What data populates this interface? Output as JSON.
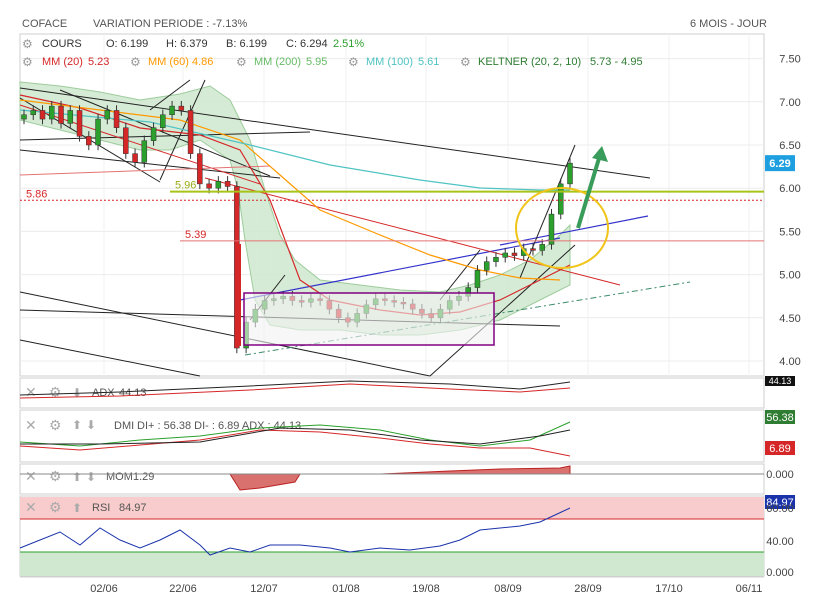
{
  "header": {
    "symbol": "COFACE",
    "variation": "VARIATION PERIODE : -7.13%",
    "period": "6 MOIS - JOUR"
  },
  "legend": {
    "cours_label": "COURS",
    "open": "O: 6.199",
    "high": "H: 6.379",
    "low": "B: 6.199",
    "close": "C: 6.294",
    "change": "2.51%",
    "mm20": "MM (20)",
    "mm20_val": "5.23",
    "mm60": "MM (60)",
    "mm60_val": "4.86",
    "mm200": "MM (200)",
    "mm200_val": "5.95",
    "mm100": "MM (100)",
    "mm100_val": "5.61",
    "keltner": "KELTNER (20, 2, 10)",
    "keltner_val": "5.73 - 4.95"
  },
  "colors": {
    "up": "#2ca02c",
    "down": "#d62728",
    "mm20": "#d62728",
    "mm60": "#ff9900",
    "mm200": "#66bb66",
    "mm100": "#4fc3c3",
    "keltner": "#9ccc9c",
    "support": "#a8c418",
    "level539": "#e57373",
    "price_box": "#1ea0e0",
    "rsi_zone": "#f8cccc",
    "rsi_low": "#cfe8cf",
    "oval": "#f0c419",
    "arrow": "#3a9c5a",
    "frame": "#800080"
  },
  "price_axis": {
    "ticks": [
      "7.50",
      "7.00",
      "6.50",
      "6.00",
      "5.50",
      "5.00",
      "4.50",
      "4.00"
    ],
    "current": "6.29"
  },
  "levels": [
    {
      "label": "5.96",
      "value": 5.96
    },
    {
      "label": "5.86",
      "value": 5.86
    },
    {
      "label": "5.39",
      "value": 5.39
    }
  ],
  "dates": [
    "02/06",
    "22/06",
    "12/07",
    "01/08",
    "19/08",
    "08/09",
    "28/09",
    "17/10",
    "06/11"
  ],
  "indicators": {
    "adx": {
      "label": "ADX",
      "value": "44.13",
      "badge": "44.13"
    },
    "dmi": {
      "label": "DMI",
      "text": "DI+ : 56.38 DI- : 6.89 ADX : 44.13",
      "badge_up": "56.38",
      "badge_down": "6.89"
    },
    "mom": {
      "label": "MOM",
      "value": "1.29",
      "badge": "0.000"
    },
    "rsi": {
      "label": "RSI",
      "value": "84.97",
      "badge": "84.97",
      "ticks": [
        "60.00",
        "40.00",
        "0.000"
      ]
    }
  },
  "chart_data": {
    "type": "candlestick",
    "title": "COFACE",
    "ylim": [
      3.9,
      7.7
    ],
    "x": [
      "02/06",
      "22/06",
      "12/07",
      "01/08",
      "19/08",
      "08/09",
      "28/09",
      "17/10",
      "06/11"
    ],
    "close_series": [
      6.85,
      6.9,
      6.8,
      6.95,
      6.75,
      6.9,
      6.6,
      6.5,
      6.8,
      6.9,
      6.7,
      6.4,
      6.3,
      6.55,
      6.7,
      6.85,
      6.95,
      6.9,
      6.4,
      6.05,
      6.0,
      6.08,
      6.02,
      4.15,
      4.45,
      4.6,
      4.7,
      4.72,
      4.75,
      4.7,
      4.68,
      4.72,
      4.7,
      4.6,
      4.5,
      4.45,
      4.55,
      4.65,
      4.72,
      4.7,
      4.68,
      4.66,
      4.6,
      4.55,
      4.5,
      4.6,
      4.7,
      4.75,
      4.85,
      5.05,
      5.15,
      5.2,
      5.25,
      5.22,
      5.3,
      5.28,
      5.35,
      5.7,
      6.05,
      6.29
    ],
    "current": 6.29,
    "indicators": {
      "ADX": 44.13,
      "DI+": 56.38,
      "DI-": 6.89,
      "MOM": 1.29,
      "RSI": 84.97
    },
    "moving_averages": {
      "MM20": 5.23,
      "MM60": 4.86,
      "MM200": 5.95,
      "MM100": 5.61
    },
    "keltner": [
      5.73,
      4.95
    ]
  }
}
